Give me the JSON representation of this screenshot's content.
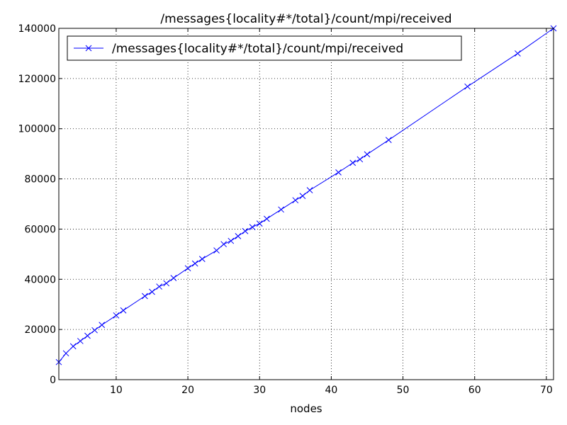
{
  "chart_data": {
    "type": "line",
    "title": "/messages{locality#*/total}/count/mpi/received",
    "xlabel": "nodes",
    "ylabel": "",
    "xlim": [
      2,
      71
    ],
    "ylim": [
      0,
      140000
    ],
    "xticks": [
      10,
      20,
      30,
      40,
      50,
      60,
      70
    ],
    "yticks": [
      0,
      20000,
      40000,
      60000,
      80000,
      100000,
      120000,
      140000
    ],
    "grid": true,
    "legend_position": "top-left",
    "color": "#0000ff",
    "marker": "x",
    "series": [
      {
        "name": "/messages{locality#*/total}/count/mpi/received",
        "x": [
          2,
          3,
          4,
          5,
          6,
          7,
          8,
          10,
          11,
          14,
          15,
          16,
          17,
          18,
          20,
          21,
          22,
          24,
          25,
          26,
          27,
          28,
          29,
          30,
          31,
          33,
          35,
          36,
          37,
          41,
          43,
          44,
          45,
          48,
          59,
          66,
          71
        ],
        "y": [
          7000,
          10500,
          13300,
          15400,
          17500,
          19700,
          21800,
          25600,
          27600,
          33300,
          35000,
          37100,
          38400,
          40500,
          44400,
          46300,
          48100,
          51500,
          54000,
          55300,
          57200,
          59200,
          60800,
          62200,
          64100,
          67800,
          71500,
          73200,
          75500,
          82600,
          86400,
          87800,
          89800,
          95500,
          116800,
          130000,
          140000
        ]
      }
    ]
  }
}
